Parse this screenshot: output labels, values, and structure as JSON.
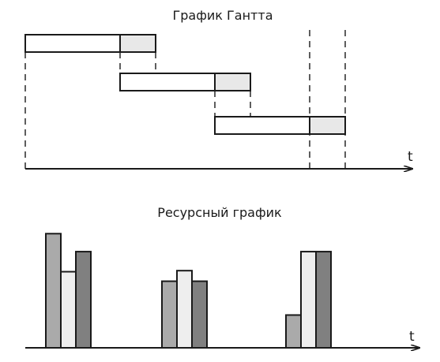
{
  "colors": {
    "ink": "#1a1a1a",
    "task": "#ffffff",
    "slack": "#e8e8e8",
    "resource_light": "#eeeeee",
    "resource_mid": "#aaaaaa",
    "resource_dark": "#808080"
  },
  "chart_data": [
    {
      "type": "gantt",
      "title": "График Гантта",
      "xlabel": "t",
      "grid": false,
      "tasks": [
        {
          "start": 0,
          "work_end": 2.0,
          "end": 2.75
        },
        {
          "start": 2.0,
          "work_end": 4.0,
          "end": 4.75
        },
        {
          "start": 4.0,
          "work_end": 6.0,
          "end": 6.75
        }
      ],
      "xlim": [
        0,
        8.1
      ]
    },
    {
      "type": "bar",
      "title": "Ресурсный график",
      "xlabel": "t",
      "grid": false,
      "groups": [
        {
          "bars": [
            {
              "value": 10.8,
              "tone": "resource_mid"
            },
            {
              "value": 7.2,
              "tone": "resource_light"
            },
            {
              "value": 9.1,
              "tone": "resource_dark"
            }
          ]
        },
        {
          "bars": [
            {
              "value": 6.3,
              "tone": "resource_mid"
            },
            {
              "value": 7.3,
              "tone": "resource_light"
            },
            {
              "value": 6.3,
              "tone": "resource_dark"
            }
          ]
        },
        {
          "bars": [
            {
              "value": 3.1,
              "tone": "resource_mid"
            },
            {
              "value": 9.1,
              "tone": "resource_light"
            },
            {
              "value": 9.1,
              "tone": "resource_dark"
            }
          ]
        }
      ],
      "ylim": [
        0,
        12
      ]
    }
  ]
}
